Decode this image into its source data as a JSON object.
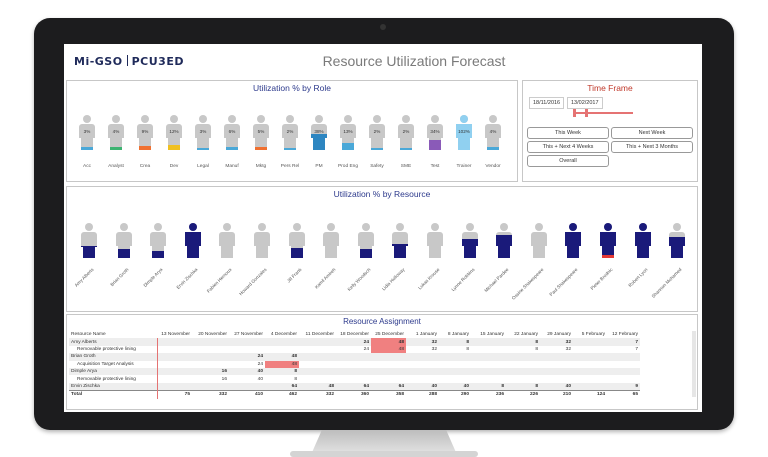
{
  "header": {
    "logo_left": "Mi-GSO",
    "logo_right": "PCU3ED",
    "title": "Resource Utilization Forecast"
  },
  "colors": {
    "base": "#c8c8c8",
    "blue_light": "#4aa8d8",
    "navy": "#1a1a7a",
    "orange": "#f07030",
    "yellow": "#f0c020",
    "red": "#e53935",
    "green": "#3cb371",
    "purple": "#8a5ab8",
    "pm": "#2e86c1",
    "trainer": "#90d0f0"
  },
  "role_panel": {
    "title": "Utilization % by Role",
    "roles": [
      {
        "label": "Acc",
        "pct": "3%",
        "fill": 0.08,
        "color": "#4aa8d8"
      },
      {
        "label": "Analyst",
        "pct": "4%",
        "fill": 0.1,
        "color": "#3cb371"
      },
      {
        "label": "Crea",
        "pct": "9%",
        "fill": 0.12,
        "color": "#f07030"
      },
      {
        "label": "Dev",
        "pct": "12%",
        "fill": 0.14,
        "color": "#f0c020"
      },
      {
        "label": "Legal",
        "pct": "3%",
        "fill": 0.06,
        "color": "#4aa8d8"
      },
      {
        "label": "Manuf",
        "pct": "6%",
        "fill": 0.1,
        "color": "#4aa8d8"
      },
      {
        "label": "Mktg",
        "pct": "5%",
        "fill": 0.1,
        "color": "#f07030"
      },
      {
        "label": "Pers Rel",
        "pct": "2%",
        "fill": 0.05,
        "color": "#4aa8d8"
      },
      {
        "label": "PM",
        "pct": "38%",
        "fill": 0.45,
        "color": "#2e86c1"
      },
      {
        "label": "Prod Eng",
        "pct": "13%",
        "fill": 0.2,
        "color": "#4aa8d8"
      },
      {
        "label": "Safety",
        "pct": "2%",
        "fill": 0.05,
        "color": "#4aa8d8"
      },
      {
        "label": "SME",
        "pct": "2%",
        "fill": 0.05,
        "color": "#4aa8d8"
      },
      {
        "label": "Test",
        "pct": "34%",
        "fill": 0.3,
        "color": "#8a5ab8"
      },
      {
        "label": "Trainer",
        "pct": "102%",
        "fill": 1.0,
        "color": "#90d0f0"
      },
      {
        "label": "Vendor",
        "pct": "4%",
        "fill": 0.08,
        "color": "#4aa8d8"
      }
    ]
  },
  "time_frame": {
    "title": "Time Frame",
    "start": "18/11/2016",
    "end": "13/02/2017",
    "buttons": [
      "This Week",
      "Next Week",
      "This + Next 4 Weeks",
      "This + Next 3 Months",
      "Overall"
    ]
  },
  "resource_panel": {
    "title": "Utilization % by Resource",
    "people": [
      {
        "name": "Amy Alberts",
        "fill": 0.35,
        "color": "#1a1a7a"
      },
      {
        "name": "Brian Groth",
        "fill": 0.25,
        "color": "#1a1a7a"
      },
      {
        "name": "Dimple Arya",
        "fill": 0.2,
        "color": "#1a1a7a"
      },
      {
        "name": "Ervin Zischka",
        "fill": 1.0,
        "color": "#1a1a7a"
      },
      {
        "name": "Fabien Hernoux",
        "fill": 0.0,
        "color": "#1a1a7a"
      },
      {
        "name": "Howard Gonzales",
        "fill": 0.0,
        "color": "#1a1a7a"
      },
      {
        "name": "Jill Frank",
        "fill": 0.3,
        "color": "#1a1a7a"
      },
      {
        "name": "Kamil Amireh",
        "fill": 0.0,
        "color": "#1a1a7a"
      },
      {
        "name": "Kelly Woodsch",
        "fill": 0.25,
        "color": "#1a1a7a"
      },
      {
        "name": "Lidia Holloway",
        "fill": 0.4,
        "color": "#1a1a7a"
      },
      {
        "name": "Lukas Krouse",
        "fill": 0.0,
        "color": "#1a1a7a"
      },
      {
        "name": "Lynne Robbins",
        "fill": 0.55,
        "color": "#1a1a7a"
      },
      {
        "name": "Michael Pardee",
        "fill": 0.65,
        "color": "#1a1a7a"
      },
      {
        "name": "Ossine Shakespeare",
        "fill": 0.0,
        "color": "#1a1a7a"
      },
      {
        "name": "Paul Shakespeare",
        "fill": 1.0,
        "color": "#1a1a7a"
      },
      {
        "name": "Pieter Brodnic",
        "fill": 1.0,
        "color": "#1a1a7a",
        "over": true
      },
      {
        "name": "Robert Lyon",
        "fill": 1.0,
        "color": "#1a1a7a"
      },
      {
        "name": "Shannon Mohamed",
        "fill": 0.6,
        "color": "#1a1a7a"
      }
    ]
  },
  "assignment": {
    "title": "Resource Assignment",
    "columns": [
      "Resource Name",
      "13 November",
      "20 November",
      "27 November",
      "4 December",
      "11 December",
      "18 December",
      "25 December",
      "1 January",
      "8 January",
      "15 January",
      "22 January",
      "29 January",
      "5 February",
      "12 February"
    ],
    "rows": [
      {
        "type": "grp",
        "cells": [
          "Amy Alberts",
          "",
          "",
          "",
          "",
          "",
          "24",
          "48",
          "32",
          "8",
          "",
          "8",
          "32",
          "",
          "7"
        ],
        "hot": [
          7
        ]
      },
      {
        "type": "sub",
        "cells": [
          "Removable protective lining",
          "",
          "",
          "",
          "",
          "",
          "24",
          "48",
          "32",
          "8",
          "",
          "8",
          "32",
          "",
          "7"
        ],
        "hot": [
          7
        ]
      },
      {
        "type": "grp",
        "cells": [
          "Brian Groth",
          "",
          "",
          "24",
          "48",
          "",
          "",
          "",
          "",
          "",
          "",
          "",
          "",
          "",
          ""
        ],
        "hot": []
      },
      {
        "type": "sub",
        "cells": [
          "Acquisition Target Analysis",
          "",
          "",
          "24",
          "48",
          "",
          "",
          "",
          "",
          "",
          "",
          "",
          "",
          "",
          ""
        ],
        "hot": [
          4
        ]
      },
      {
        "type": "grp",
        "cells": [
          "Dimple Arya",
          "",
          "16",
          "40",
          "8",
          "",
          "",
          "",
          "",
          "",
          "",
          "",
          "",
          "",
          ""
        ],
        "hot": []
      },
      {
        "type": "sub",
        "cells": [
          "Removable protective lining",
          "",
          "16",
          "40",
          "8",
          "",
          "",
          "",
          "",
          "",
          "",
          "",
          "",
          "",
          ""
        ],
        "hot": []
      },
      {
        "type": "grp",
        "cells": [
          "Ervin Zischka",
          "",
          "",
          "",
          "64",
          "48",
          "64",
          "64",
          "40",
          "40",
          "8",
          "8",
          "40",
          "",
          "9"
        ],
        "hot": []
      },
      {
        "type": "tot",
        "cells": [
          "Total",
          "75",
          "332",
          "410",
          "462",
          "332",
          "360",
          "358",
          "288",
          "290",
          "236",
          "226",
          "210",
          "124",
          "65"
        ],
        "hot": []
      }
    ]
  }
}
